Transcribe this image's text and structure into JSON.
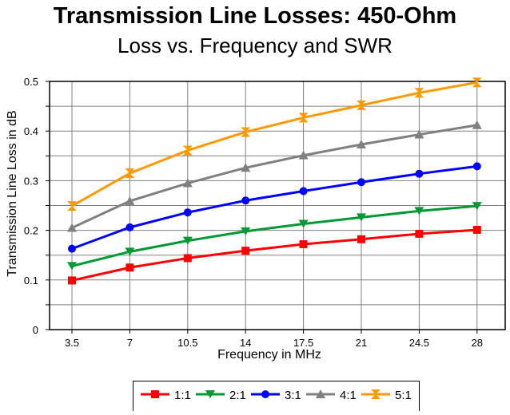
{
  "chart_data": {
    "type": "line",
    "title": "Transmission Line Losses:  450-Ohm",
    "subtitle": "Loss vs. Frequency and SWR",
    "xlabel": "Frequency in MHz",
    "ylabel": "Transmission Line Loss in dB",
    "categories": [
      "3.5",
      "7",
      "10.5",
      "14",
      "17.5",
      "21",
      "24.5",
      "28"
    ],
    "ylim": [
      0,
      0.5
    ],
    "yticks": [
      "0",
      "0.1",
      "0.2",
      "0.3",
      "0.4",
      "0.5"
    ],
    "grid": true,
    "legend_position": "bottom",
    "series": [
      {
        "name": "1:1",
        "color": "#ff0000",
        "marker": "square",
        "values": [
          0.099,
          0.125,
          0.144,
          0.159,
          0.172,
          0.182,
          0.193,
          0.201
        ]
      },
      {
        "name": "2:1",
        "color": "#009933",
        "marker": "triangle-down",
        "values": [
          0.128,
          0.157,
          0.179,
          0.198,
          0.213,
          0.226,
          0.239,
          0.249
        ]
      },
      {
        "name": "3:1",
        "color": "#0000ff",
        "marker": "circle",
        "values": [
          0.163,
          0.206,
          0.236,
          0.26,
          0.279,
          0.297,
          0.314,
          0.329
        ]
      },
      {
        "name": "4:1",
        "color": "#808080",
        "marker": "triangle-up",
        "values": [
          0.205,
          0.259,
          0.295,
          0.326,
          0.351,
          0.373,
          0.393,
          0.412
        ]
      },
      {
        "name": "5:1",
        "color": "#ff9900",
        "marker": "hourglass",
        "values": [
          0.249,
          0.315,
          0.361,
          0.398,
          0.427,
          0.452,
          0.477,
          0.498
        ]
      }
    ]
  }
}
